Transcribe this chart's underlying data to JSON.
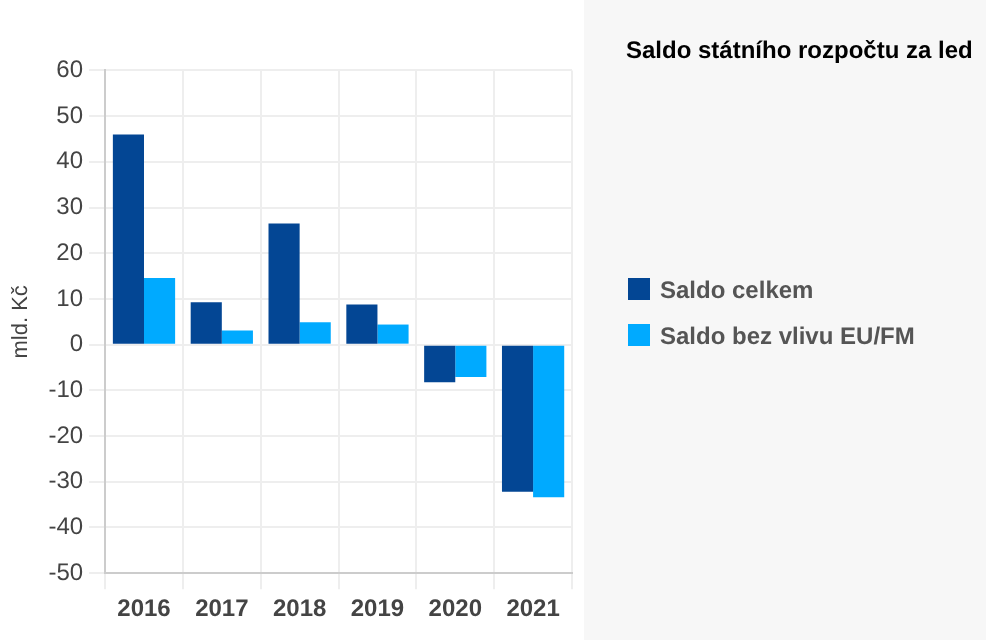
{
  "chart_data": {
    "type": "bar",
    "title": "Saldo státního rozpočtu za led",
    "ylabel": "mld. Kč",
    "categories": [
      "2016",
      "2017",
      "2018",
      "2019",
      "2020",
      "2021"
    ],
    "series": [
      {
        "name": "Saldo celkem",
        "color": "#034694",
        "values": [
          46,
          9.3,
          26.5,
          8.8,
          -8.2,
          -32.2
        ]
      },
      {
        "name": "Saldo bez vlivu EU/FM",
        "color": "#00aaff",
        "values": [
          14.6,
          3.1,
          4.9,
          4.4,
          -7.1,
          -33.4
        ]
      }
    ],
    "ylim": [
      -50,
      60
    ],
    "yticks": [
      -50,
      -40,
      -30,
      -20,
      -10,
      0,
      10,
      20,
      30,
      40,
      50,
      60
    ],
    "grid": true,
    "legend": "right"
  }
}
